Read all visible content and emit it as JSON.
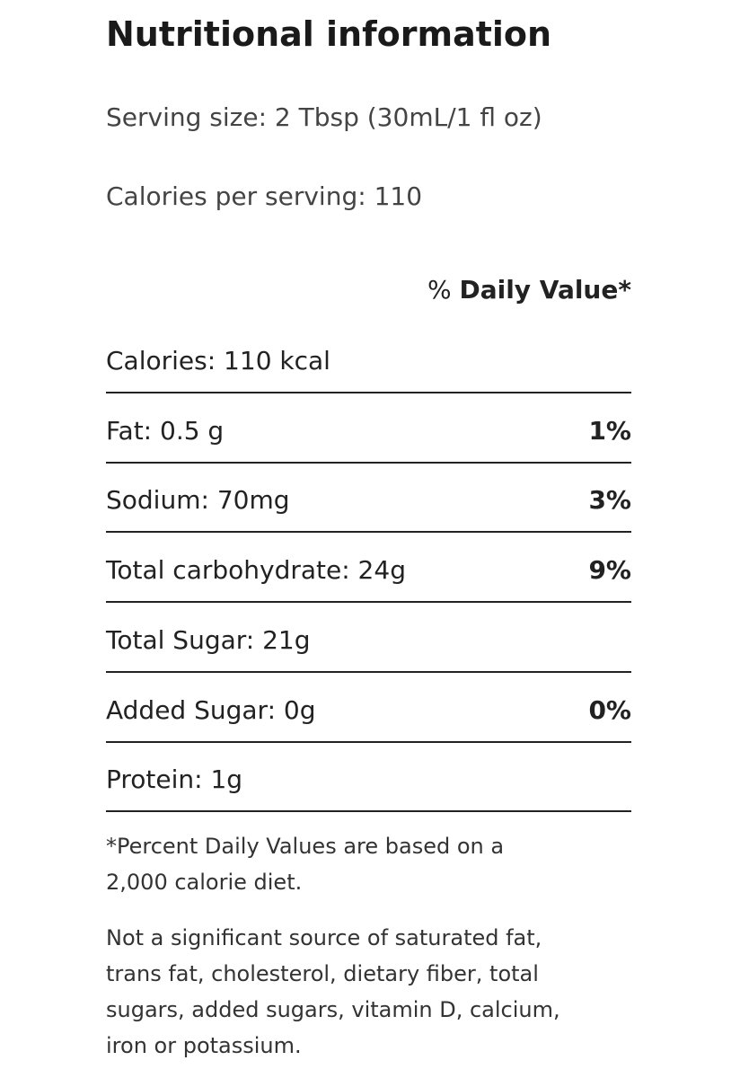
{
  "title": "Nutritional information",
  "serving_size": "Serving size: 2 Tbsp (30mL/1 fl oz)",
  "calories_per_serving": "Calories per serving: 110",
  "daily_value_header": {
    "percent": "%",
    "label": "Daily Value*"
  },
  "table": {
    "rows": [
      [
        "Calories: 110 kcal",
        null
      ],
      [
        "Fat: 0.5 g",
        "1%"
      ],
      [
        "Sodium: 70mg",
        "3%"
      ],
      [
        "Total carbohydrate: 24g",
        "9%"
      ],
      [
        "Total Sugar: 21g",
        null
      ],
      [
        "Added Sugar: 0g",
        "0%"
      ],
      [
        "Protein: 1g",
        null
      ]
    ]
  },
  "footnote": [
    "*Percent Daily Values are based on a",
    "2,000 calorie diet."
  ],
  "note": [
    "Not a significant source of saturated fat,",
    "trans fat, cholesterol, dietary fiber, total",
    "sugars, added sugars, vitamin D, calcium,",
    "iron or potassium."
  ]
}
